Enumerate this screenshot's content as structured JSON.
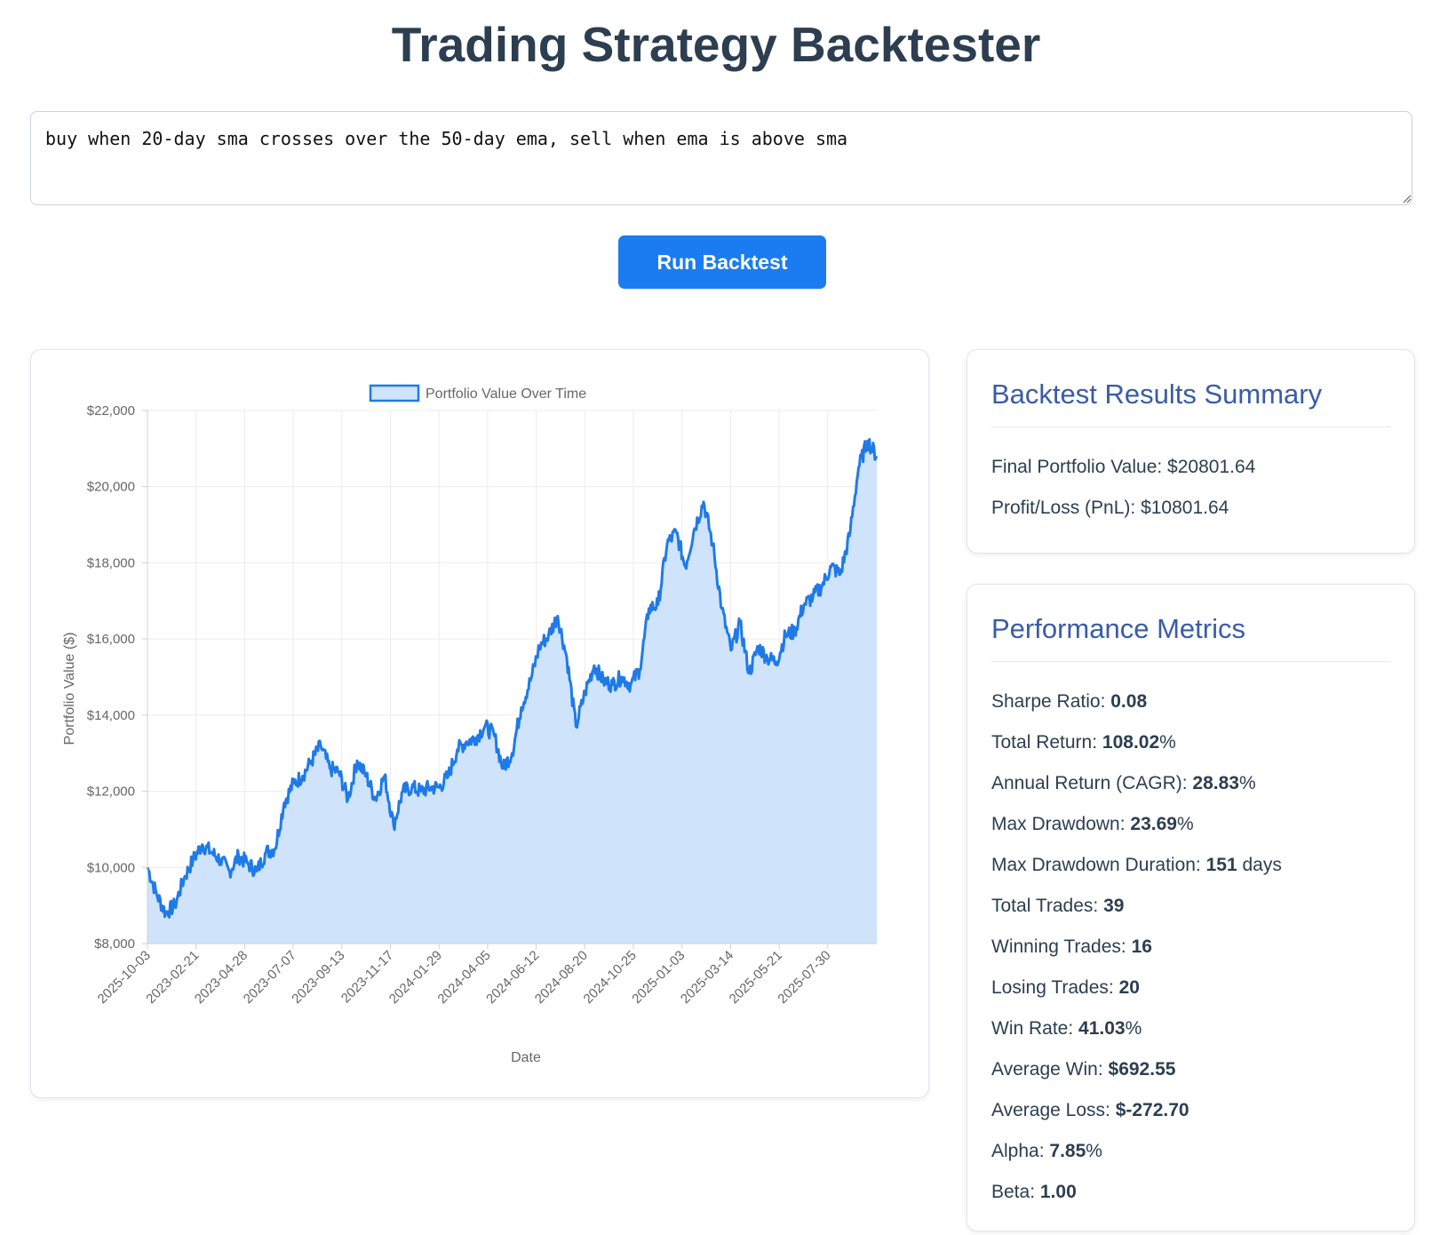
{
  "header": {
    "title": "Trading Strategy Backtester"
  },
  "strategy": {
    "value": "buy when 20-day sma crosses over the 50-day ema, sell when ema is above sma"
  },
  "run_button": {
    "label": "Run Backtest"
  },
  "colors": {
    "accent": "#1a7cf0",
    "line": "#1f7ae8",
    "fill": "#cfe3fb",
    "heading": "#3a5ba8"
  },
  "summary": {
    "title": "Backtest Results Summary",
    "items": [
      {
        "label": "Final Portfolio Value: ",
        "value": "$20801.64"
      },
      {
        "label": "Profit/Loss (PnL): ",
        "value": "$10801.64"
      }
    ]
  },
  "metrics": {
    "title": "Performance Metrics",
    "items": [
      {
        "label": "Sharpe Ratio: ",
        "value": "0.08",
        "suffix": ""
      },
      {
        "label": "Total Return: ",
        "value": "108.02",
        "suffix": "%"
      },
      {
        "label": "Annual Return (CAGR): ",
        "value": "28.83",
        "suffix": "%"
      },
      {
        "label": "Max Drawdown: ",
        "value": "23.69",
        "suffix": "%"
      },
      {
        "label": "Max Drawdown Duration: ",
        "value": "151",
        "suffix": " days"
      },
      {
        "label": "Total Trades: ",
        "value": "39",
        "suffix": ""
      },
      {
        "label": "Winning Trades: ",
        "value": "16",
        "suffix": ""
      },
      {
        "label": "Losing Trades: ",
        "value": "20",
        "suffix": ""
      },
      {
        "label": "Win Rate: ",
        "value": "41.03",
        "suffix": "%"
      },
      {
        "label": "Average Win: ",
        "value": "$692.55",
        "suffix": ""
      },
      {
        "label": "Average Loss: ",
        "value": "$-272.70",
        "suffix": ""
      },
      {
        "label": "Alpha: ",
        "value": "7.85",
        "suffix": "%"
      },
      {
        "label": "Beta: ",
        "value": "1.00",
        "suffix": ""
      }
    ]
  },
  "chart_data": {
    "type": "area",
    "legend": {
      "label": "Portfolio Value Over Time",
      "placement": "top"
    },
    "xlabel": "Date",
    "ylabel": "Portfolio Value ($)",
    "ylim": [
      8000,
      22000
    ],
    "y_ticks": [
      "$22,000",
      "$20,000",
      "$18,000",
      "$16,000",
      "$14,000",
      "$12,000",
      "$10,000",
      "$8,000"
    ],
    "x_ticks": [
      "2025-10-03",
      "2023-02-21",
      "2023-04-28",
      "2023-07-07",
      "2023-09-13",
      "2023-11-17",
      "2024-01-29",
      "2024-04-05",
      "2024-06-12",
      "2024-08-20",
      "2024-10-25",
      "2025-01-03",
      "2025-03-14",
      "2025-05-21",
      "2025-07-30"
    ],
    "grid": true,
    "series": [
      {
        "name": "Portfolio Value Over Time",
        "values": [
          10000,
          9300,
          8800,
          9000,
          9700,
          10200,
          10600,
          10400,
          10200,
          9900,
          10300,
          10100,
          9900,
          10400,
          10500,
          11700,
          12200,
          12400,
          12800,
          13200,
          12600,
          12500,
          11800,
          12800,
          12400,
          11800,
          12400,
          11100,
          12000,
          12100,
          12000,
          12100,
          12100,
          12400,
          13100,
          13300,
          13400,
          13700,
          13500,
          12600,
          13000,
          14200,
          14900,
          15800,
          16100,
          16600,
          15500,
          13700,
          14600,
          15300,
          14900,
          14800,
          15000,
          14800,
          15200,
          16800,
          16900,
          18500,
          18800,
          17900,
          18900,
          19600,
          18500,
          16800,
          15700,
          16400,
          15100,
          15800,
          15500,
          15400,
          16100,
          16200,
          16900,
          17100,
          17400,
          17900,
          17700,
          18700,
          20500,
          21200,
          20800
        ]
      }
    ]
  }
}
